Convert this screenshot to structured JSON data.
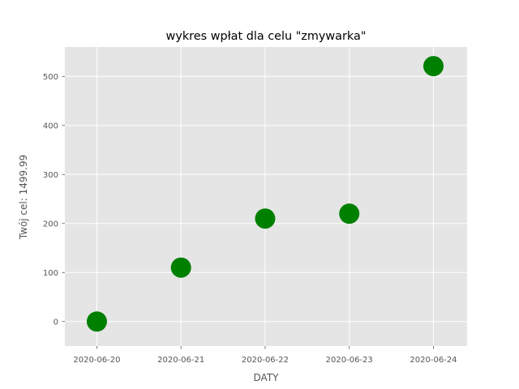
{
  "chart_data": {
    "type": "scatter",
    "title": "wykres wpłat dla celu \"zmywarka\"",
    "xlabel": "DATY",
    "ylabel": "Twój cel: 1499.99",
    "x": [
      "2020-06-20",
      "2020-06-21",
      "2020-06-22",
      "2020-06-23",
      "2020-06-24"
    ],
    "series": [
      {
        "values": [
          0,
          110,
          210,
          220,
          521
        ],
        "color": "#008000"
      }
    ],
    "xlim": [
      "2020-06-19.62",
      "2020-06-24.4"
    ],
    "ylim": [
      -50,
      560
    ],
    "yticks": [
      0,
      100,
      200,
      300,
      400,
      500
    ],
    "ytick_labels": [
      "0",
      "100",
      "200",
      "300",
      "400",
      "500"
    ],
    "xtick_labels": [
      "2020-06-20",
      "2020-06-21",
      "2020-06-22",
      "2020-06-23",
      "2020-06-24"
    ],
    "grid": true,
    "style": "ggplot",
    "background_color": "#e5e5e5",
    "grid_color": "#ffffff"
  }
}
